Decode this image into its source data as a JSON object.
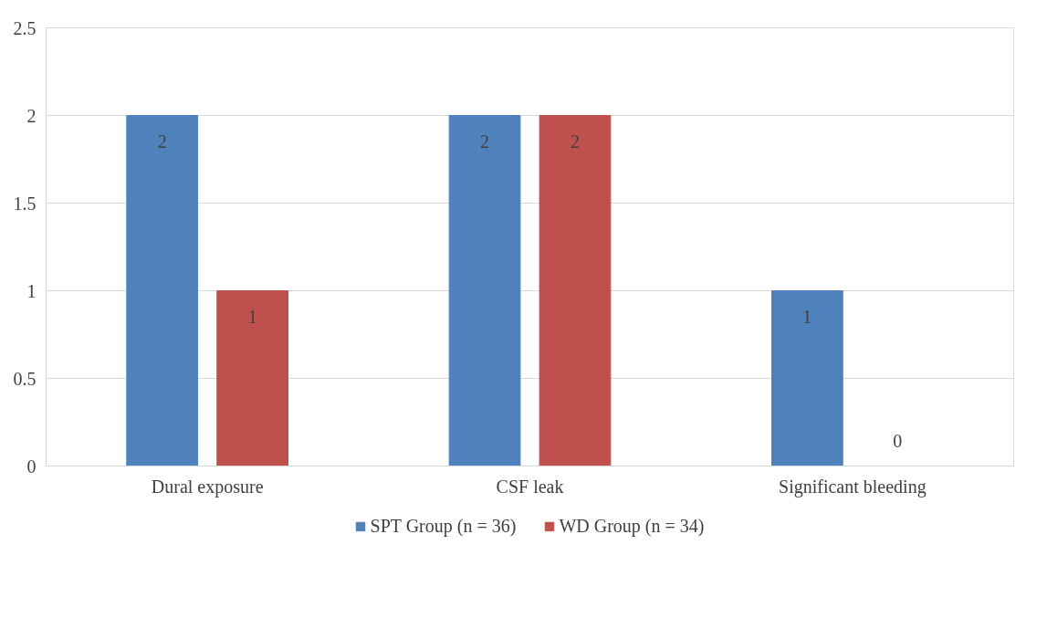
{
  "chart_data": {
    "type": "bar",
    "categories": [
      "Dural exposure",
      "CSF leak",
      "Significant bleeding"
    ],
    "series": [
      {
        "name": "SPT Group (n = 36)",
        "color": "#4f81bd",
        "values": [
          2,
          2,
          1
        ]
      },
      {
        "name": "WD Group (n = 34)",
        "color": "#c0504d",
        "values": [
          1,
          2,
          0
        ]
      }
    ],
    "ylim": [
      0,
      2.5
    ],
    "yticks": [
      0,
      0.5,
      1,
      1.5,
      2,
      2.5
    ],
    "grid": "y",
    "legend": "bottom",
    "data_labels": true
  }
}
